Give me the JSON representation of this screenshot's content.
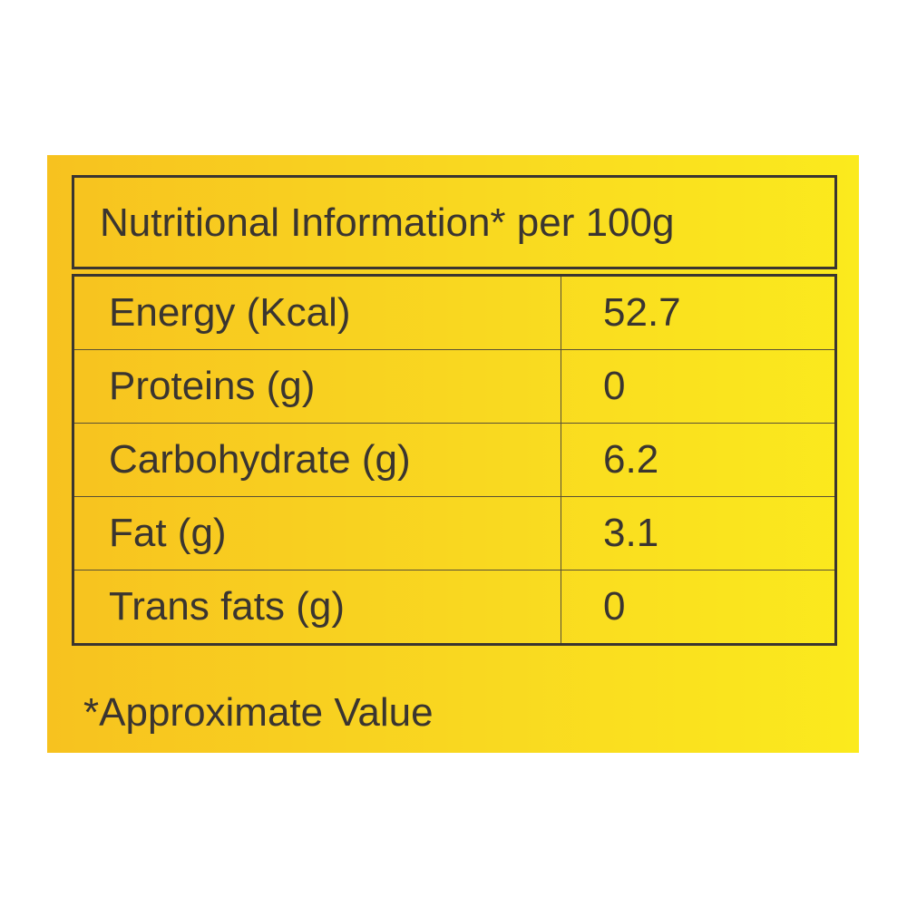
{
  "table": {
    "title": "Nutritional Information* per 100g",
    "rows": [
      [
        "Energy (Kcal)",
        "52.7"
      ],
      [
        "Proteins (g)",
        "0"
      ],
      [
        "Carbohydrate (g)",
        "6.2"
      ],
      [
        "Fat (g)",
        "3.1"
      ],
      [
        "Trans fats (g)",
        "0"
      ]
    ]
  },
  "footnote": "*Approximate Value"
}
